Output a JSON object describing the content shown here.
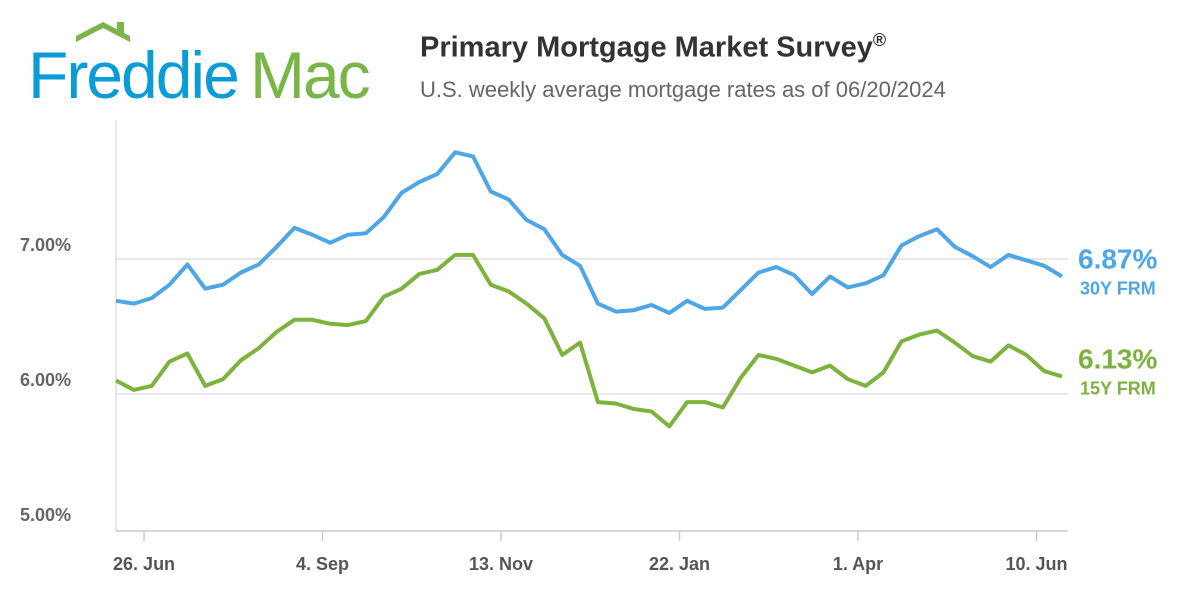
{
  "brand": {
    "logo_text_1": "Freddie",
    "logo_text_2": "Mac",
    "blue": "#0a9cd8",
    "green": "#7ab547"
  },
  "header": {
    "title": "Primary Mortgage Market Survey",
    "title_mark": "®",
    "subtitle": "U.S. weekly average mortgage rates as of 06/20/2024"
  },
  "chart_data": {
    "type": "line",
    "title": "Primary Mortgage Market Survey®",
    "subtitle": "U.S. weekly average mortgage rates as of 06/20/2024",
    "ylim": [
      5,
      8
    ],
    "yticks": [
      {
        "value": 5,
        "label": "5.00%"
      },
      {
        "value": 6,
        "label": "6.00%"
      },
      {
        "value": 7,
        "label": "7.00%"
      }
    ],
    "xrange": [
      "2023-06-15",
      "2024-06-20"
    ],
    "xticks": [
      {
        "date": "2023-06-26",
        "label": "26. Jun"
      },
      {
        "date": "2023-09-04",
        "label": "4. Sep"
      },
      {
        "date": "2023-11-13",
        "label": "13. Nov"
      },
      {
        "date": "2024-01-22",
        "label": "22. Jan"
      },
      {
        "date": "2024-04-01",
        "label": "1. Apr"
      },
      {
        "date": "2024-06-10",
        "label": "10. Jun"
      }
    ],
    "grid": true,
    "x_start": "2023-06-15",
    "x_step_days": 7,
    "series": [
      {
        "name": "30Y FRM",
        "color": "#4ea6e6",
        "end_label": "6.87%",
        "values": [
          6.69,
          6.67,
          6.71,
          6.81,
          6.96,
          6.78,
          6.81,
          6.9,
          6.96,
          7.09,
          7.23,
          7.18,
          7.12,
          7.18,
          7.19,
          7.31,
          7.49,
          7.57,
          7.63,
          7.79,
          7.76,
          7.5,
          7.44,
          7.29,
          7.22,
          7.03,
          6.95,
          6.67,
          6.61,
          6.62,
          6.66,
          6.6,
          6.69,
          6.63,
          6.64,
          6.77,
          6.9,
          6.94,
          6.88,
          6.74,
          6.87,
          6.79,
          6.82,
          6.88,
          7.1,
          7.17,
          7.22,
          7.09,
          7.02,
          6.94,
          7.03,
          6.99,
          6.95,
          6.87
        ]
      },
      {
        "name": "15Y FRM",
        "color": "#7db23d",
        "end_label": "6.13%",
        "values": [
          6.1,
          6.03,
          6.06,
          6.24,
          6.3,
          6.06,
          6.11,
          6.25,
          6.34,
          6.46,
          6.55,
          6.55,
          6.52,
          6.51,
          6.54,
          6.72,
          6.78,
          6.89,
          6.92,
          7.03,
          7.03,
          6.81,
          6.76,
          6.67,
          6.56,
          6.29,
          6.38,
          5.94,
          5.93,
          5.89,
          5.87,
          5.76,
          5.94,
          5.94,
          5.9,
          6.12,
          6.29,
          6.26,
          6.21,
          6.16,
          6.21,
          6.11,
          6.06,
          6.16,
          6.39,
          6.44,
          6.47,
          6.38,
          6.28,
          6.24,
          6.36,
          6.29,
          6.17,
          6.13
        ]
      }
    ]
  }
}
